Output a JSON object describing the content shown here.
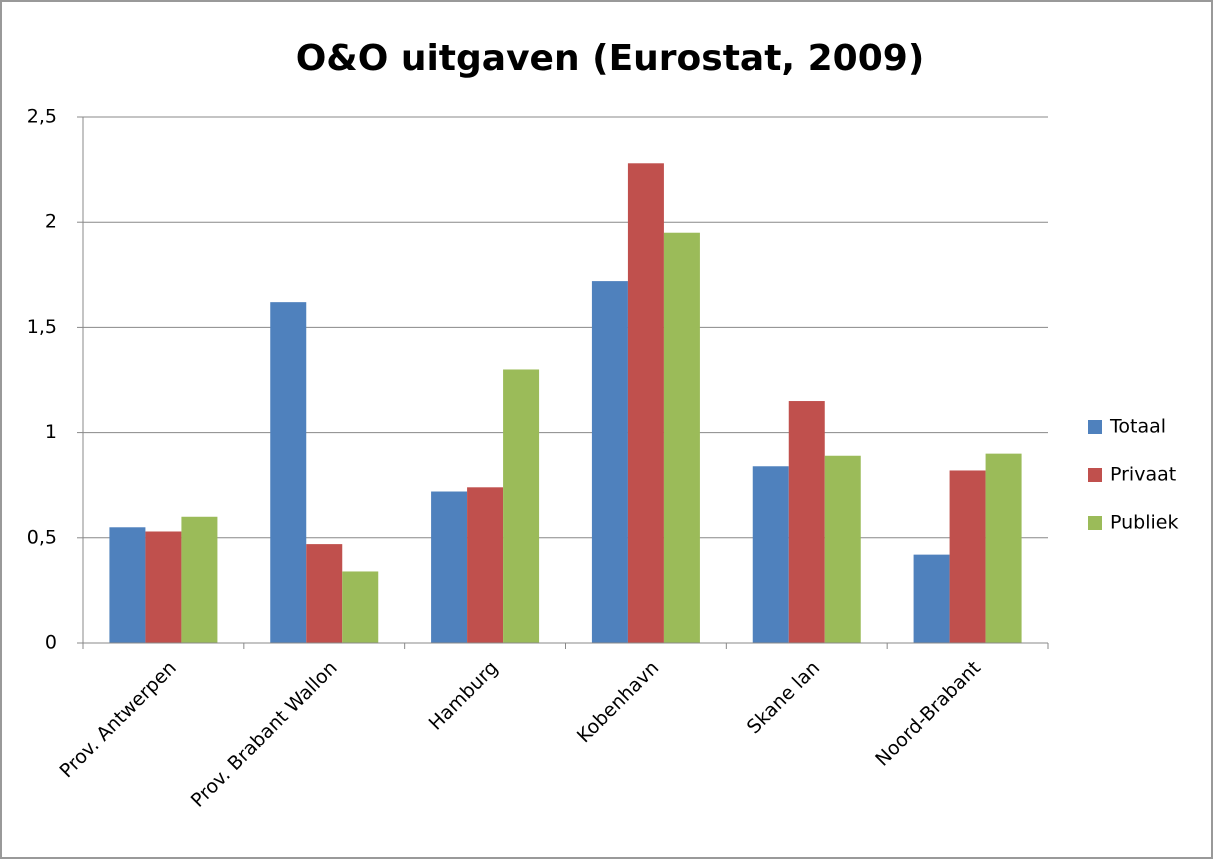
{
  "chart_data": {
    "type": "bar",
    "title": "O&O uitgaven (Eurostat, 2009)",
    "categories": [
      "Prov. Antwerpen",
      "Prov. Brabant Wallon",
      "Hamburg",
      "Kobenhavn",
      "Skane lan",
      "Noord-Brabant"
    ],
    "series": [
      {
        "name": "Totaal",
        "color": "#4f81bd",
        "values": [
          0.55,
          1.62,
          0.72,
          1.72,
          0.84,
          0.42
        ]
      },
      {
        "name": "Privaat",
        "color": "#c0504d",
        "values": [
          0.53,
          0.47,
          0.74,
          2.28,
          1.15,
          0.82
        ]
      },
      {
        "name": "Publiek",
        "color": "#9bbb59",
        "values": [
          0.6,
          0.34,
          1.3,
          1.95,
          0.89,
          0.9
        ]
      }
    ],
    "ylim": [
      0,
      2.5
    ],
    "yticks": [
      0,
      {
        "value": 0.5,
        "label": "0,5"
      },
      1,
      {
        "value": 1.5,
        "label": "1,5"
      },
      2,
      {
        "value": 2.5,
        "label": "2,5"
      }
    ],
    "grid": true,
    "legend": "right"
  }
}
